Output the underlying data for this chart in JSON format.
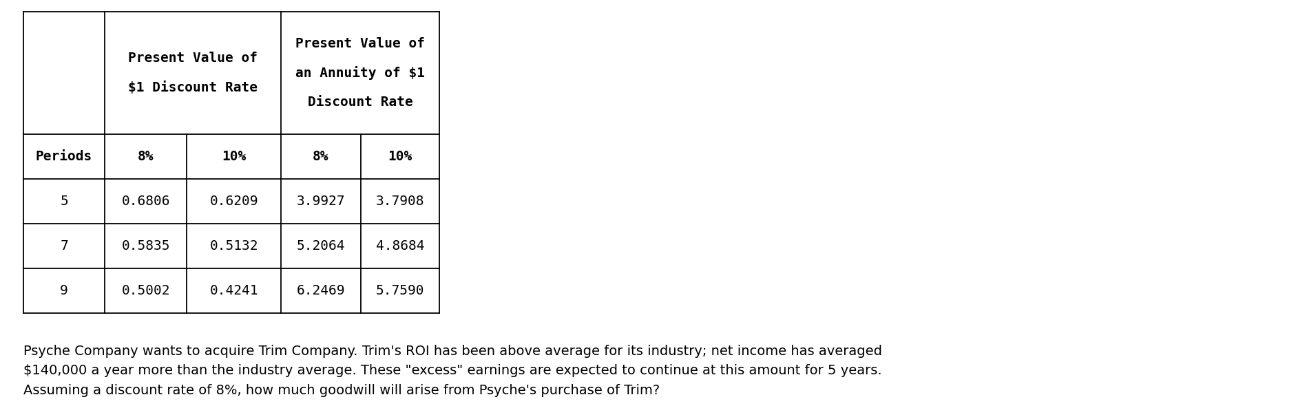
{
  "bg_color": "#ffffff",
  "table": {
    "data_rows": [
      [
        "5",
        "0.6806",
        "0.6209",
        "3.9927",
        "3.7908"
      ],
      [
        "7",
        "0.5835",
        "0.5132",
        "5.2064",
        "4.8684"
      ],
      [
        "9",
        "0.5002",
        "0.4241",
        "6.2469",
        "5.7590"
      ]
    ]
  },
  "paragraph": "Psyche Company wants to acquire Trim Company. Trim's ROI has been above average for its industry; net income has averaged\n$140,000 a year more than the industry average. These \"excess\" earnings are expected to continue at this amount for 5 years.\nAssuming a discount rate of 8%, how much goodwill will arise from Psyche's purchase of Trim?",
  "text_color": "#000000",
  "line_color": "#000000",
  "table_font_size": 14,
  "para_font_size": 14
}
